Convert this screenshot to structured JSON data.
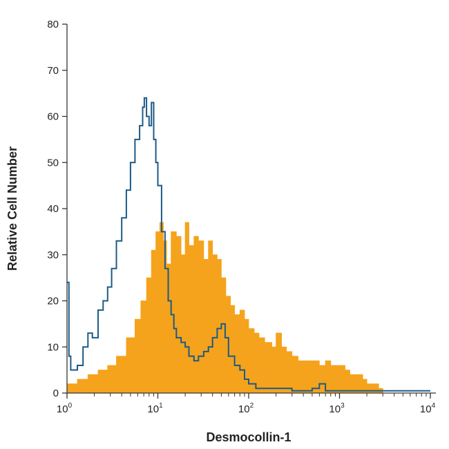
{
  "chart_data": {
    "type": "area",
    "title": "",
    "xlabel": "Desmocollin-1",
    "ylabel": "Relative Cell Number",
    "x_scale": "log",
    "xlim": [
      1,
      10000
    ],
    "ylim": [
      0,
      80
    ],
    "x_ticks": [
      {
        "value": 1,
        "base": "10",
        "exp": "0"
      },
      {
        "value": 10,
        "base": "10",
        "exp": "1"
      },
      {
        "value": 100,
        "base": "10",
        "exp": "2"
      },
      {
        "value": 1000,
        "base": "10",
        "exp": "3"
      },
      {
        "value": 10000,
        "base": "10",
        "exp": "4"
      }
    ],
    "y_ticks": [
      "0",
      "10",
      "20",
      "30",
      "40",
      "50",
      "60",
      "70",
      "80"
    ],
    "grid": false,
    "series": [
      {
        "style": "filled",
        "color": "#f5a31c",
        "x": [
          1,
          1.3,
          1.7,
          2.2,
          2.8,
          3.5,
          4.5,
          5.6,
          6.5,
          7.5,
          8.5,
          9.5,
          10.5,
          11.5,
          12.5,
          14,
          16,
          18,
          20,
          22,
          25,
          28,
          32,
          36,
          40,
          45,
          50,
          56,
          63,
          70,
          80,
          90,
          100,
          115,
          130,
          150,
          180,
          200,
          230,
          260,
          300,
          350,
          400,
          500,
          600,
          700,
          800,
          900,
          1000,
          1150,
          1300,
          1500,
          1800,
          2000,
          2300,
          2700,
          3000
        ],
        "y": [
          2,
          3,
          4,
          5,
          6,
          8,
          12,
          16,
          20,
          25,
          31,
          35,
          37,
          33,
          28,
          35,
          34,
          30,
          37,
          32,
          34,
          33,
          29,
          33,
          30,
          29,
          25,
          21,
          19,
          17,
          18,
          16,
          14,
          13,
          12,
          11,
          10,
          13,
          10,
          9,
          8,
          7,
          7,
          7,
          6,
          7,
          6,
          6,
          6,
          5,
          4,
          4,
          3,
          2,
          2,
          1,
          0
        ]
      },
      {
        "style": "line",
        "color": "#1b5a86",
        "x": [
          1,
          1.05,
          1.1,
          1.2,
          1.3,
          1.5,
          1.7,
          1.9,
          2.2,
          2.5,
          2.8,
          3.1,
          3.5,
          4,
          4.5,
          5,
          5.6,
          6.3,
          6.8,
          7.1,
          7.5,
          8,
          8.5,
          9,
          9.5,
          10,
          11,
          12,
          13,
          14,
          15,
          16,
          18,
          20,
          22,
          25,
          28,
          32,
          36,
          40,
          45,
          50,
          55,
          60,
          70,
          80,
          90,
          100,
          120,
          150,
          200,
          300,
          400,
          500,
          600,
          700,
          800,
          1000,
          2000,
          5000,
          10000
        ],
        "y": [
          24,
          8,
          5,
          5,
          6,
          10,
          13,
          12,
          18,
          20,
          23,
          27,
          33,
          38,
          44,
          50,
          55,
          58,
          62,
          64,
          60,
          58,
          63,
          55,
          50,
          45,
          35,
          27,
          20,
          17,
          14,
          12,
          11,
          10,
          8,
          7,
          8,
          9,
          10,
          12,
          14,
          15,
          12,
          8,
          6,
          5,
          3,
          2,
          1,
          1,
          1,
          0.5,
          0.5,
          1,
          2,
          0.5,
          0.5,
          0.5,
          0.5,
          0.5,
          0.5
        ]
      }
    ]
  }
}
